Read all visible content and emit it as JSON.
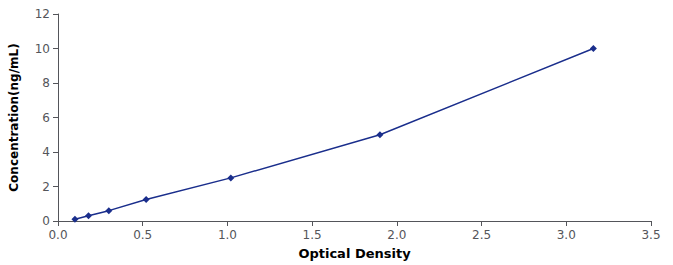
{
  "chart_data": {
    "type": "line",
    "xlabel": "Optical Density",
    "ylabel": "Concentration(ng/mL)",
    "x": [
      0.1,
      0.18,
      0.3,
      0.52,
      1.02,
      1.9,
      3.16
    ],
    "y": [
      0.1,
      0.3,
      0.6,
      1.25,
      2.5,
      5.0,
      10.0
    ],
    "xlim": [
      0,
      3.5
    ],
    "ylim": [
      0,
      12
    ],
    "xticks": [
      {
        "value": 0,
        "label": "0.0"
      },
      0.5,
      {
        "value": 1,
        "label": "1.0"
      },
      1.5,
      {
        "value": 2,
        "label": "2.0"
      },
      2.5,
      {
        "value": 3,
        "label": "3.0"
      },
      3.5
    ],
    "yticks": [
      0,
      2,
      4,
      6,
      8,
      10,
      12
    ],
    "color": "#1a2e8c",
    "marker": "diamond",
    "grid": false
  }
}
